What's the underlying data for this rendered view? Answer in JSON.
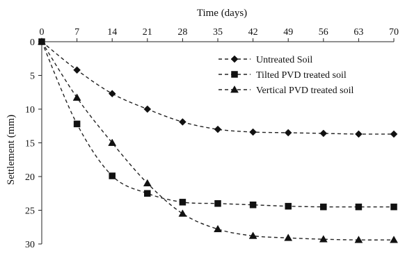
{
  "chart_data": {
    "type": "line",
    "xlabel": "Time (days)",
    "ylabel": "Settlement (mm)",
    "xlim": [
      0,
      70
    ],
    "ylim": [
      0,
      30
    ],
    "y_inverted": true,
    "x_axis_position": "top",
    "x_ticks": [
      0,
      7,
      14,
      21,
      28,
      35,
      42,
      49,
      56,
      63,
      70
    ],
    "y_ticks": [
      0,
      5,
      10,
      15,
      20,
      25,
      30
    ],
    "grid": false,
    "legend_position": "top-right",
    "line_style": "dashed",
    "series": [
      {
        "name": "Untreated Soil",
        "marker": "diamond",
        "x": [
          0,
          7,
          14,
          21,
          28,
          35,
          42,
          49,
          56,
          63,
          70
        ],
        "y": [
          0,
          4.2,
          7.7,
          10.0,
          11.9,
          13.0,
          13.4,
          13.5,
          13.6,
          13.7,
          13.7
        ]
      },
      {
        "name": "Tilted PVD treated soil",
        "marker": "square",
        "x": [
          0,
          7,
          14,
          21,
          28,
          35,
          42,
          49,
          56,
          63,
          70
        ],
        "y": [
          0,
          12.2,
          19.9,
          22.5,
          23.8,
          24.0,
          24.2,
          24.4,
          24.5,
          24.5,
          24.5
        ]
      },
      {
        "name": "Vertical PVD treated soil",
        "marker": "triangle",
        "x": [
          0,
          7,
          14,
          21,
          28,
          35,
          42,
          49,
          56,
          63,
          70
        ],
        "y": [
          0,
          8.3,
          15.0,
          21.0,
          25.5,
          27.8,
          28.8,
          29.1,
          29.3,
          29.4,
          29.4
        ]
      }
    ]
  }
}
